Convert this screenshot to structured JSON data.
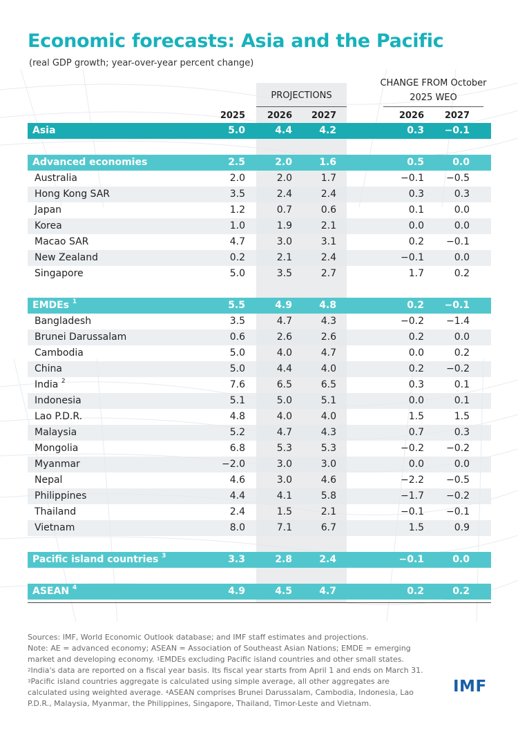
{
  "title": "Economic forecasts: Asia and the Pacific",
  "subtitle": "(real GDP growth; year-over-year percent change)",
  "projections_label": "PROJECTIONS",
  "change_label_line1": "CHANGE FROM October",
  "change_label_line2": "2025 WEO",
  "columns": [
    "2025",
    "2026",
    "2027",
    "2026",
    "2027"
  ],
  "rows": [
    {
      "type": "region",
      "name": "Asia",
      "sup": "",
      "values": [
        "5.0",
        "4.4",
        "4.2",
        "0.3",
        "−0.1"
      ]
    },
    {
      "type": "spacer"
    },
    {
      "type": "group",
      "name": "Advanced economies",
      "sup": "",
      "values": [
        "2.5",
        "2.0",
        "1.6",
        "0.5",
        "0.0"
      ]
    },
    {
      "type": "country",
      "name": "Australia",
      "sup": "",
      "values": [
        "2.0",
        "2.0",
        "1.7",
        "−0.1",
        "−0.5"
      ]
    },
    {
      "type": "country",
      "name": "Hong Kong SAR",
      "sup": "",
      "values": [
        "3.5",
        "2.4",
        "2.4",
        "0.3",
        "0.3"
      ]
    },
    {
      "type": "country",
      "name": "Japan",
      "sup": "",
      "values": [
        "1.2",
        "0.7",
        "0.6",
        "0.1",
        "0.0"
      ]
    },
    {
      "type": "country",
      "name": "Korea",
      "sup": "",
      "values": [
        "1.0",
        "1.9",
        "2.1",
        "0.0",
        "0.0"
      ]
    },
    {
      "type": "country",
      "name": "Macao SAR",
      "sup": "",
      "values": [
        "4.7",
        "3.0",
        "3.1",
        "0.2",
        "−0.1"
      ]
    },
    {
      "type": "country",
      "name": "New Zealand",
      "sup": "",
      "values": [
        "0.2",
        "2.1",
        "2.4",
        "−0.1",
        "0.0"
      ]
    },
    {
      "type": "country",
      "name": "Singapore",
      "sup": "",
      "values": [
        "5.0",
        "3.5",
        "2.7",
        "1.7",
        "0.2"
      ]
    },
    {
      "type": "spacer"
    },
    {
      "type": "group",
      "name": "EMDEs",
      "sup": "1",
      "values": [
        "5.5",
        "4.9",
        "4.8",
        "0.2",
        "−0.1"
      ]
    },
    {
      "type": "country",
      "name": "Bangladesh",
      "sup": "",
      "values": [
        "3.5",
        "4.7",
        "4.3",
        "−0.2",
        "−1.4"
      ]
    },
    {
      "type": "country",
      "name": "Brunei Darussalam",
      "sup": "",
      "values": [
        "0.6",
        "2.6",
        "2.6",
        "0.2",
        "0.0"
      ]
    },
    {
      "type": "country",
      "name": "Cambodia",
      "sup": "",
      "values": [
        "5.0",
        "4.0",
        "4.7",
        "0.0",
        "0.2"
      ]
    },
    {
      "type": "country",
      "name": "China",
      "sup": "",
      "values": [
        "5.0",
        "4.4",
        "4.0",
        "0.2",
        "−0.2"
      ]
    },
    {
      "type": "country",
      "name": "India",
      "sup": "2",
      "values": [
        "7.6",
        "6.5",
        "6.5",
        "0.3",
        "0.1"
      ]
    },
    {
      "type": "country",
      "name": "Indonesia",
      "sup": "",
      "values": [
        "5.1",
        "5.0",
        "5.1",
        "0.0",
        "0.1"
      ]
    },
    {
      "type": "country",
      "name": "Lao P.D.R.",
      "sup": "",
      "values": [
        "4.8",
        "4.0",
        "4.0",
        "1.5",
        "1.5"
      ]
    },
    {
      "type": "country",
      "name": "Malaysia",
      "sup": "",
      "values": [
        "5.2",
        "4.7",
        "4.3",
        "0.7",
        "0.3"
      ]
    },
    {
      "type": "country",
      "name": "Mongolia",
      "sup": "",
      "values": [
        "6.8",
        "5.3",
        "5.3",
        "−0.2",
        "−0.2"
      ]
    },
    {
      "type": "country",
      "name": "Myanmar",
      "sup": "",
      "values": [
        "−2.0",
        "3.0",
        "3.0",
        "0.0",
        "0.0"
      ]
    },
    {
      "type": "country",
      "name": "Nepal",
      "sup": "",
      "values": [
        "4.6",
        "3.0",
        "4.6",
        "−2.2",
        "−0.5"
      ]
    },
    {
      "type": "country",
      "name": "Philippines",
      "sup": "",
      "values": [
        "4.4",
        "4.1",
        "5.8",
        "−1.7",
        "−0.2"
      ]
    },
    {
      "type": "country",
      "name": "Thailand",
      "sup": "",
      "values": [
        "2.4",
        "1.5",
        "2.1",
        "−0.1",
        "−0.1"
      ]
    },
    {
      "type": "country",
      "name": "Vietnam",
      "sup": "",
      "values": [
        "8.0",
        "7.1",
        "6.7",
        "1.5",
        "0.9"
      ]
    },
    {
      "type": "spacer"
    },
    {
      "type": "group",
      "name": "Pacific island countries",
      "sup": "3",
      "values": [
        "3.3",
        "2.8",
        "2.4",
        "−0.1",
        "0.0"
      ]
    },
    {
      "type": "spacer"
    },
    {
      "type": "group",
      "name": "ASEAN",
      "sup": "4",
      "values": [
        "4.9",
        "4.5",
        "4.7",
        "0.2",
        "0.2"
      ]
    }
  ],
  "footer": {
    "sources": "Sources: IMF, World Economic Outlook database; and IMF staff estimates and projections.",
    "note_a": "Note: AE = advanced economy; ASEAN = Association of Southeast Asian Nations; EMDE = emerging market and developing economy.",
    "fn1_mark": "1",
    "fn1": "EMDEs excluding Pacific island countries and other small states.",
    "fn2_mark": "2",
    "fn2": "India's data are reported on a fiscal year basis. Its fiscal year starts from April 1 and ends on March 31.",
    "fn3_mark": "3",
    "fn3": "Pacific island countries aggregate is calculated using simple average, all other aggregates are calculated using weighted average.",
    "fn4_mark": "4",
    "fn4": "ASEAN comprises Brunei Darussalam, Cambodia, Indonesia, Lao P.D.R., Malaysia, Myanmar, the Philippines, Singapore, Thailand, Timor-Leste and Vietnam."
  },
  "logo": "IMF",
  "colors": {
    "title": "#18b1bb",
    "asia_band": "#1aacb2",
    "group_band": "#51c7cd",
    "logo": "#1b5ea6"
  }
}
